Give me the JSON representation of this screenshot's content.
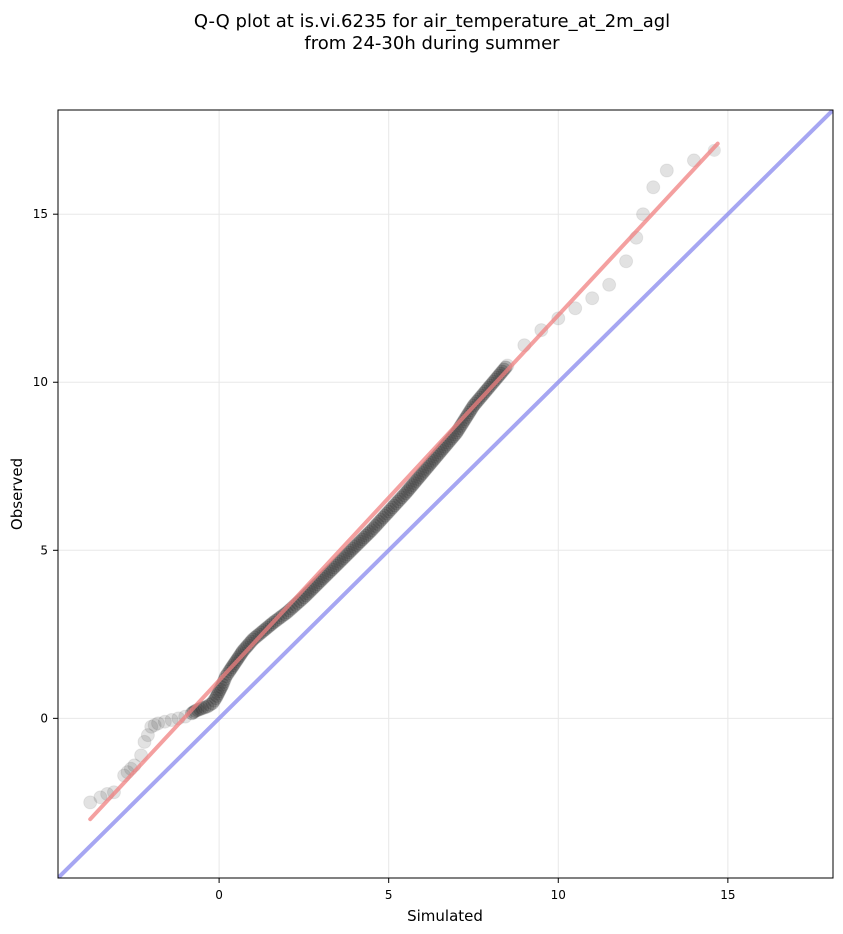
{
  "chart_data": {
    "type": "scatter",
    "title": [
      "Q-Q plot at is.vi.6235 for air_temperature_at_2m_agl",
      "from 24-30h during summer"
    ],
    "xlabel": "Simulated",
    "ylabel": "Observed",
    "xlim": [
      -4.75,
      18.1
    ],
    "ylim": [
      -4.75,
      18.1
    ],
    "xticks": [
      0,
      5,
      10,
      15
    ],
    "yticks": [
      0,
      5,
      10,
      15
    ],
    "grid": true,
    "colors": {
      "points": "#333333",
      "fit_line": "#f08080",
      "identity_line": "#8888ee",
      "grid": "#e8e8e8"
    },
    "quantiles": [
      [
        -3.8,
        -2.5
      ],
      [
        -3.5,
        -2.35
      ],
      [
        -3.3,
        -2.25
      ],
      [
        -3.1,
        -2.2
      ],
      [
        -2.8,
        -1.7
      ],
      [
        -2.7,
        -1.6
      ],
      [
        -2.6,
        -1.5
      ],
      [
        -2.5,
        -1.4
      ],
      [
        -2.3,
        -1.1
      ],
      [
        -2.2,
        -0.7
      ],
      [
        -2.1,
        -0.5
      ],
      [
        -2.0,
        -0.25
      ],
      [
        -1.9,
        -0.2
      ],
      [
        -1.8,
        -0.15
      ],
      [
        -1.6,
        -0.1
      ],
      [
        -1.4,
        -0.05
      ],
      [
        -1.2,
        0.0
      ],
      [
        -1.0,
        0.05
      ],
      [
        -0.8,
        0.15
      ],
      [
        -0.7,
        0.22
      ],
      [
        -0.5,
        0.3
      ],
      [
        -0.35,
        0.35
      ],
      [
        -0.2,
        0.45
      ],
      [
        -0.1,
        0.6
      ],
      [
        0.0,
        0.8
      ],
      [
        0.1,
        1.0
      ],
      [
        0.2,
        1.25
      ],
      [
        0.3,
        1.4
      ],
      [
        0.5,
        1.7
      ],
      [
        0.7,
        2.0
      ],
      [
        1.0,
        2.35
      ],
      [
        1.3,
        2.6
      ],
      [
        1.6,
        2.85
      ],
      [
        2.0,
        3.15
      ],
      [
        2.5,
        3.6
      ],
      [
        3.0,
        4.1
      ],
      [
        3.5,
        4.6
      ],
      [
        4.0,
        5.1
      ],
      [
        4.5,
        5.6
      ],
      [
        5.0,
        6.15
      ],
      [
        5.5,
        6.7
      ],
      [
        6.0,
        7.3
      ],
      [
        6.5,
        7.9
      ],
      [
        7.0,
        8.5
      ],
      [
        7.5,
        9.3
      ],
      [
        8.0,
        9.9
      ],
      [
        8.5,
        10.5
      ],
      [
        9.0,
        11.1
      ],
      [
        9.5,
        11.55
      ],
      [
        10.0,
        11.9
      ],
      [
        10.5,
        12.2
      ],
      [
        11.0,
        12.5
      ],
      [
        11.5,
        12.9
      ],
      [
        12.0,
        13.6
      ],
      [
        12.3,
        14.3
      ],
      [
        12.5,
        15.0
      ],
      [
        12.8,
        15.8
      ],
      [
        13.2,
        16.3
      ],
      [
        14.0,
        16.6
      ],
      [
        14.6,
        16.9
      ]
    ],
    "series": [
      {
        "points": [
          [
            -3.8,
            -3.0
          ],
          [
            14.7,
            17.1
          ]
        ]
      },
      {
        "points": [
          [
            -4.75,
            -4.75
          ],
          [
            18.1,
            18.1
          ]
        ]
      }
    ]
  }
}
